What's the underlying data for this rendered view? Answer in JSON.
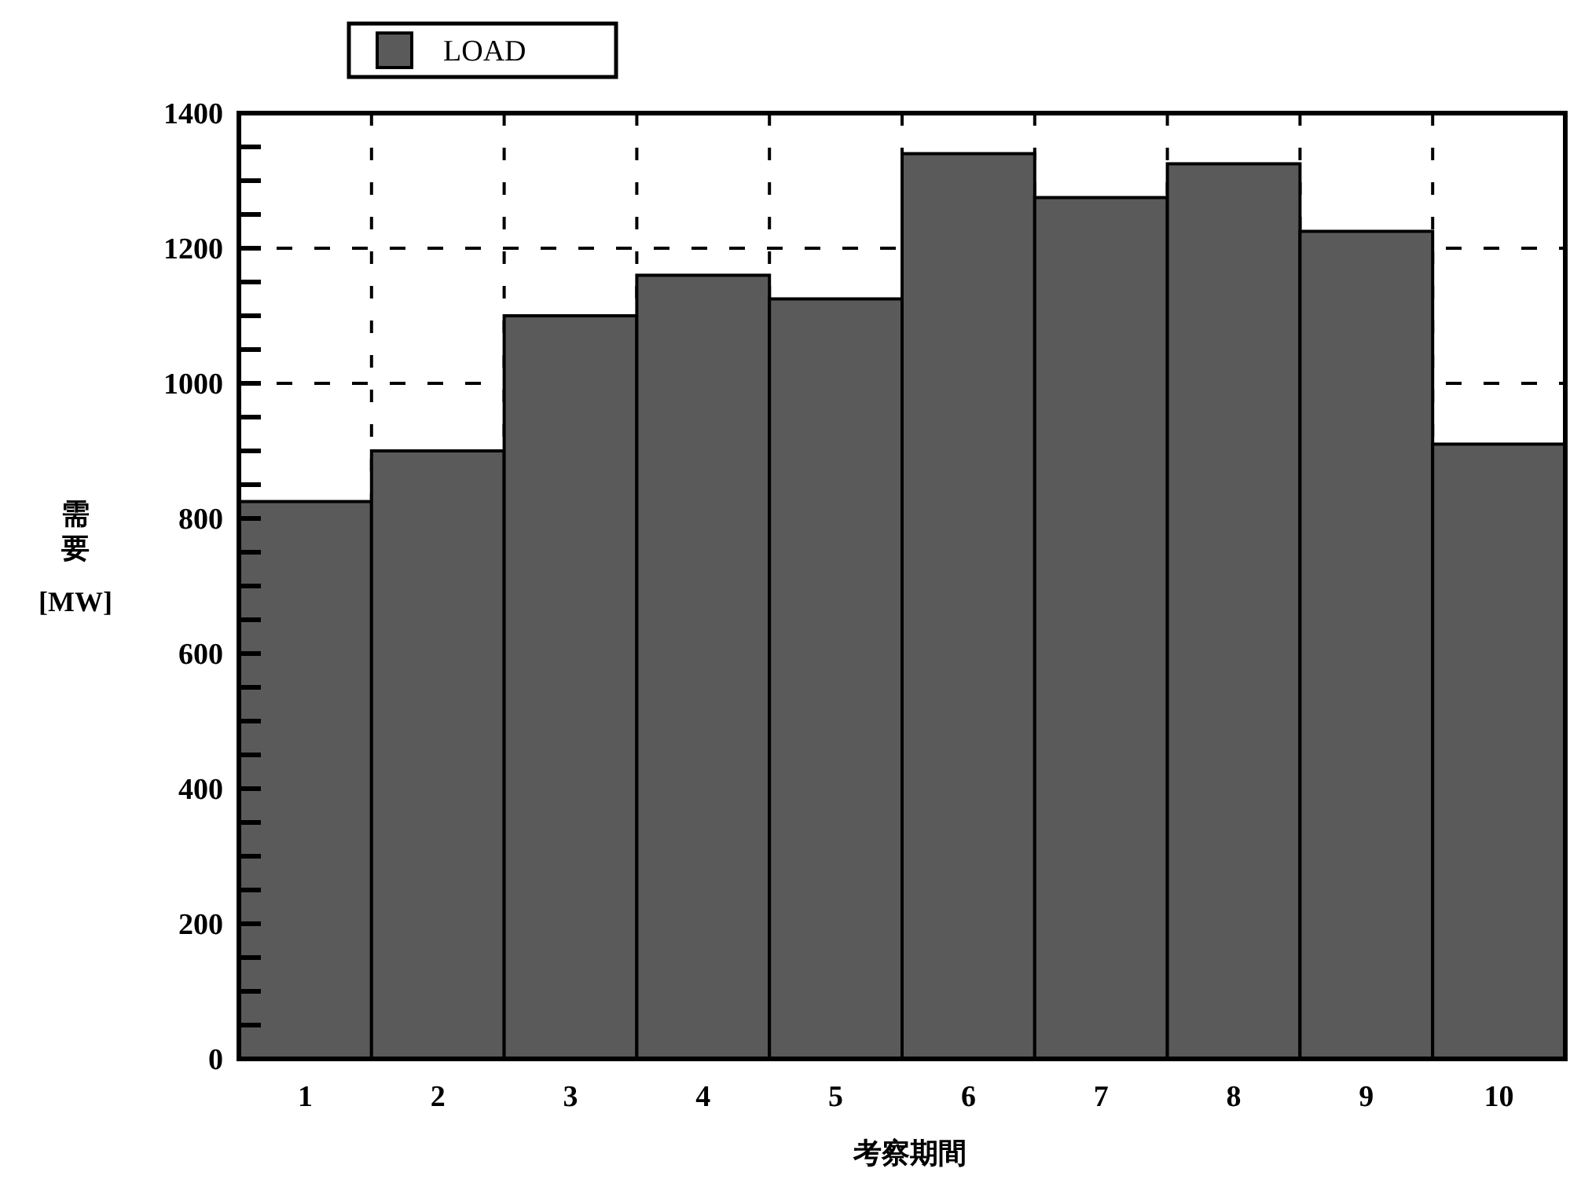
{
  "chart_data": {
    "type": "bar",
    "xlabel": "考察期間",
    "ylabel": "需要 [MW]",
    "categories": [
      "1",
      "2",
      "3",
      "4",
      "5",
      "6",
      "7",
      "8",
      "9",
      "10"
    ],
    "series": [
      {
        "name": "LOAD",
        "color": "#5a5a5a",
        "values": [
          825,
          900,
          1100,
          1160,
          1125,
          1340,
          1275,
          1325,
          1225,
          910
        ]
      }
    ],
    "ylim": [
      0,
      1400
    ],
    "yticks": [
      0,
      {
        "value": 50,
        "label": null
      },
      {
        "value": 100,
        "label": null
      },
      {
        "value": 150,
        "label": null
      },
      200,
      {
        "value": 250,
        "label": null
      },
      {
        "value": 300,
        "label": null
      },
      {
        "value": 350,
        "label": null
      },
      400,
      {
        "value": 450,
        "label": null
      },
      {
        "value": 500,
        "label": null
      },
      {
        "value": 550,
        "label": null
      },
      600,
      {
        "value": 650,
        "label": null
      },
      {
        "value": 700,
        "label": null
      },
      {
        "value": 750,
        "label": null
      },
      800,
      {
        "value": 850,
        "label": null
      },
      {
        "value": 900,
        "label": null
      },
      {
        "value": 950,
        "label": null
      },
      1000,
      {
        "value": 1050,
        "label": null
      },
      {
        "value": 1100,
        "label": null
      },
      {
        "value": 1150,
        "label": null
      },
      1200,
      {
        "value": 1250,
        "label": null
      },
      {
        "value": 1300,
        "label": null
      },
      {
        "value": 1350,
        "label": null
      },
      1400
    ],
    "grid": true,
    "legend": "top left"
  }
}
